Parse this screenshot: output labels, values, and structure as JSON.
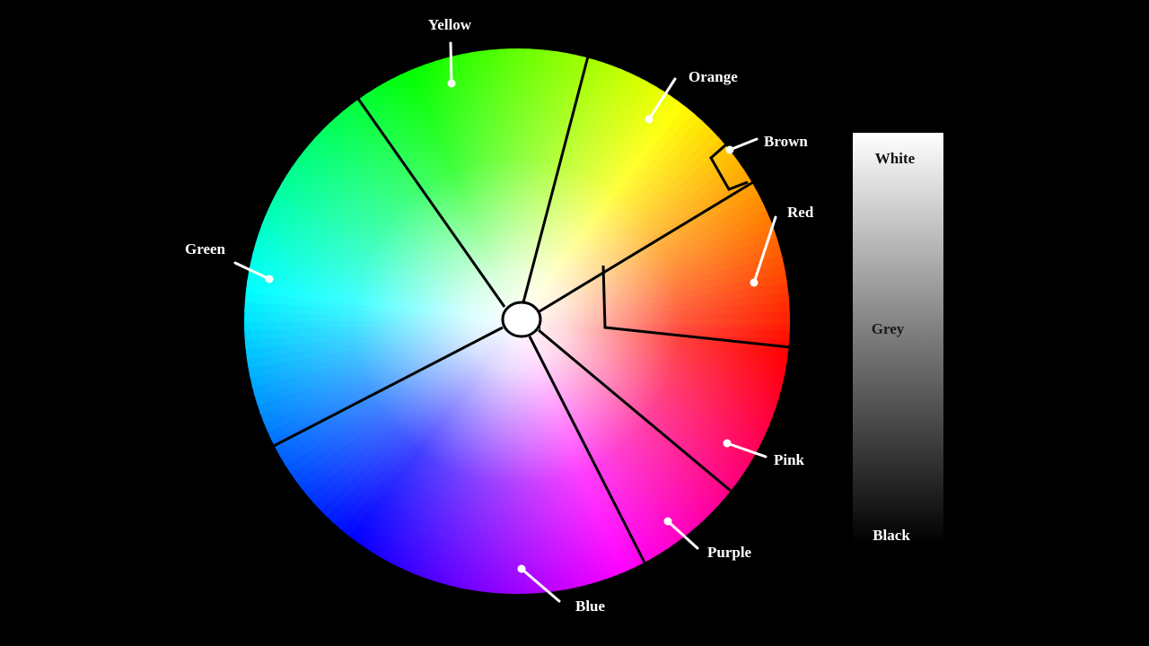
{
  "wheel": {
    "hues": [
      {
        "name": "Yellow",
        "color": "#ffff00"
      },
      {
        "name": "Orange",
        "color": "#ff8800"
      },
      {
        "name": "Brown",
        "color": "#ff5500"
      },
      {
        "name": "Red",
        "color": "#ff0000"
      },
      {
        "name": "Pink",
        "color": "#ff00ff"
      },
      {
        "name": "Purple",
        "color": "#8800ff"
      },
      {
        "name": "Blue",
        "color": "#0000ff"
      },
      {
        "name": "Green",
        "color": "#00ff00"
      }
    ]
  },
  "labels": {
    "yellow": "Yellow",
    "orange": "Orange",
    "brown": "Brown",
    "red": "Red",
    "pink": "Pink",
    "purple": "Purple",
    "blue": "Blue",
    "green": "Green"
  },
  "greyscale": {
    "top": "White",
    "middle": "Grey",
    "bottom": "Black"
  }
}
